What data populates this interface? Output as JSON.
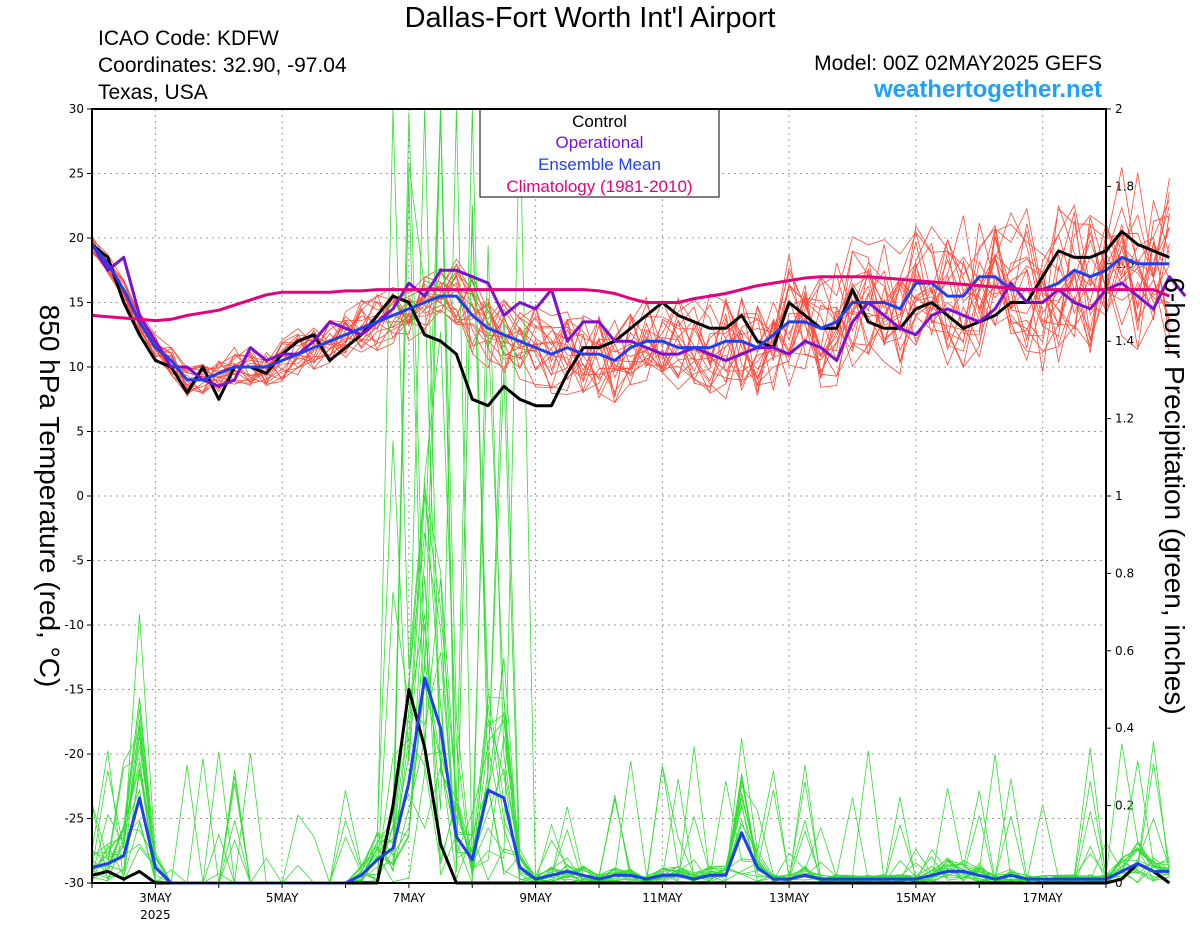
{
  "header": {
    "title": "Dallas-Fort Worth Int'l Airport",
    "icao": "ICAO Code: KDFW",
    "coordinates": "Coordinates: 32.90, -97.04",
    "region": "Texas, USA",
    "model": "Model: 00Z 02MAY2025 GEFS",
    "site": "weathertogether.net"
  },
  "colors": {
    "members_temp": "#ff4a3a",
    "members_precip": "#33dd33",
    "control": "#000000",
    "operational": "#7a10d6",
    "ensemble_mean": "#2040ee",
    "climatology": "#e6007e",
    "site": "#1ea0ff"
  },
  "chart_data": {
    "type": "line",
    "xlabel": "",
    "ylabel": "850 hPa Temperature (red, °C)",
    "y2label": "6-hour Precipitation (green, inches)",
    "x_unit": "days after 2025-05-02 00Z",
    "xlim": [
      0,
      16
    ],
    "ylim": [
      -30,
      30
    ],
    "y2lim": [
      0,
      2
    ],
    "x_ticks": [
      {
        "x": 1,
        "label": "3MAY",
        "sub": "2025"
      },
      {
        "x": 3,
        "label": "5MAY",
        "sub": ""
      },
      {
        "x": 5,
        "label": "7MAY",
        "sub": ""
      },
      {
        "x": 7,
        "label": "9MAY",
        "sub": ""
      },
      {
        "x": 9,
        "label": "11MAY",
        "sub": ""
      },
      {
        "x": 11,
        "label": "13MAY",
        "sub": ""
      },
      {
        "x": 13,
        "label": "15MAY",
        "sub": ""
      },
      {
        "x": 15,
        "label": "17MAY",
        "sub": ""
      }
    ],
    "y_ticks": [
      -30,
      -25,
      -20,
      -15,
      -10,
      -5,
      0,
      5,
      10,
      15,
      20,
      25,
      30
    ],
    "y2_ticks": [
      "0",
      "0.2",
      "0.4",
      "0.6",
      "0.8",
      "1",
      "1.2",
      "1.4",
      "1.6",
      "1.8",
      "2"
    ],
    "grid": true,
    "legend_position": "top-center",
    "legend": [
      "Control",
      "Operational",
      "Ensemble Mean",
      "Climatology (1981-2010)"
    ],
    "series": [
      {
        "name": "Control",
        "kind": "temperature",
        "x_step_days": 0.25,
        "values": [
          19.5,
          18.5,
          15,
          12.5,
          10.5,
          10,
          8,
          10,
          7.5,
          10,
          10,
          9.5,
          11,
          12,
          12.5,
          10.5,
          11.5,
          12.5,
          14,
          15.5,
          15,
          12.5,
          12,
          11,
          7.5,
          7,
          8.5,
          7.5,
          7,
          7,
          9.5,
          11.5,
          11.5,
          12,
          13,
          14,
          15,
          14,
          13.5,
          13,
          13,
          14,
          12,
          11.5,
          15,
          14,
          13,
          13,
          16,
          13.5,
          13,
          13,
          14.5,
          15,
          14,
          13,
          13.5,
          14,
          15,
          15,
          17,
          19,
          18.5,
          18.5,
          19,
          20.5,
          19.5,
          19,
          18.5
        ]
      },
      {
        "name": "Operational",
        "kind": "temperature",
        "x_step_days": 0.25,
        "values": [
          19.5,
          17.5,
          18.5,
          14,
          12,
          10,
          10,
          9,
          8.5,
          9,
          11.5,
          10.5,
          11,
          11,
          12,
          13.5,
          13,
          12.5,
          13.5,
          14.5,
          16.5,
          15.5,
          17.5,
          17.5,
          17,
          16.5,
          14,
          15,
          14.5,
          16,
          12,
          13.5,
          13.5,
          12,
          12,
          11.5,
          11,
          11,
          11.5,
          11,
          10.5,
          11,
          11.5,
          11.5,
          11,
          12,
          11.5,
          10.5,
          13.5,
          15,
          14,
          13,
          12.5,
          14,
          14.5,
          14,
          13.5,
          14.5,
          16.5,
          15,
          15,
          16,
          15,
          14.5,
          16,
          16.5,
          15.5,
          14.5,
          17,
          15.5
        ]
      },
      {
        "name": "Ensemble Mean",
        "kind": "temperature",
        "x_step_days": 0.25,
        "values": [
          19.5,
          18,
          16,
          13.5,
          11.5,
          10.5,
          9,
          9,
          9.5,
          10,
          10,
          10,
          10.5,
          11,
          11.5,
          12,
          12.5,
          13,
          13.5,
          14,
          14.5,
          15,
          15.5,
          15.5,
          14,
          13,
          12.5,
          12,
          11.5,
          11,
          11.5,
          11,
          11,
          10.5,
          11.5,
          12,
          12,
          11.5,
          11.5,
          11.5,
          12,
          12,
          11.5,
          12.5,
          13.5,
          13.5,
          13,
          13.5,
          15,
          15,
          15,
          14.5,
          16.5,
          16.5,
          15.5,
          15.5,
          17,
          17,
          16,
          16,
          16,
          16.5,
          17.5,
          17,
          17.5,
          18.5,
          18,
          18,
          18
        ]
      },
      {
        "name": "Climatology (1981-2010)",
        "kind": "temperature",
        "x_step_days": 0.25,
        "values": [
          14,
          13.9,
          13.8,
          13.7,
          13.6,
          13.7,
          14,
          14.2,
          14.4,
          14.8,
          15.2,
          15.6,
          15.8,
          15.8,
          15.8,
          15.8,
          15.9,
          15.9,
          16,
          16,
          16,
          16,
          16,
          16,
          16,
          16,
          16,
          16,
          16,
          16,
          16,
          16,
          15.9,
          15.7,
          15.3,
          15,
          15,
          15,
          15.3,
          15.5,
          15.7,
          16,
          16.3,
          16.5,
          16.7,
          16.9,
          17,
          17,
          17,
          17,
          16.9,
          16.8,
          16.7,
          16.6,
          16.5,
          16.4,
          16.3,
          16.2,
          16.1,
          16,
          16,
          16,
          16,
          16,
          16,
          16,
          16,
          16,
          15.5
        ]
      },
      {
        "name": "Control",
        "kind": "precipitation",
        "x_step_days": 0.25,
        "values": [
          0.02,
          0.03,
          0.01,
          0.03,
          0,
          0,
          0,
          0,
          0,
          0,
          0,
          0,
          0,
          0,
          0,
          0,
          0,
          0,
          0,
          0.2,
          0.5,
          0.35,
          0.1,
          0,
          0,
          0,
          0,
          0,
          0,
          0,
          0,
          0,
          0,
          0,
          0,
          0,
          0,
          0,
          0,
          0,
          0,
          0,
          0,
          0,
          0,
          0,
          0,
          0,
          0,
          0,
          0,
          0,
          0,
          0,
          0,
          0,
          0,
          0,
          0,
          0,
          0,
          0,
          0,
          0,
          0,
          0.01,
          0.05,
          0.03,
          0
        ]
      },
      {
        "name": "Ensemble Mean",
        "kind": "precipitation",
        "x_step_days": 0.25,
        "values": [
          0.04,
          0.05,
          0.07,
          0.22,
          0.04,
          0,
          0,
          0,
          0,
          0,
          0,
          0,
          0,
          0,
          0,
          0,
          0,
          0.02,
          0.06,
          0.09,
          0.26,
          0.53,
          0.4,
          0.12,
          0.06,
          0.24,
          0.22,
          0.04,
          0.01,
          0.02,
          0.03,
          0.02,
          0.01,
          0.02,
          0.02,
          0.01,
          0.02,
          0.02,
          0.01,
          0.02,
          0.02,
          0.13,
          0.04,
          0.01,
          0.01,
          0.02,
          0.01,
          0.01,
          0.01,
          0.01,
          0.01,
          0.01,
          0.01,
          0.02,
          0.03,
          0.03,
          0.02,
          0.01,
          0.02,
          0.01,
          0.01,
          0.01,
          0.01,
          0.01,
          0.01,
          0.03,
          0.05,
          0.03,
          0.03
        ]
      }
    ]
  }
}
